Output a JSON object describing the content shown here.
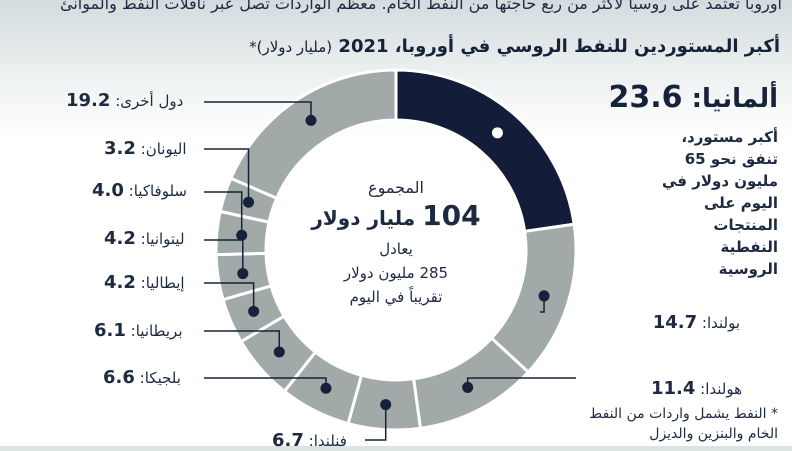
{
  "intro_text": "أوروبا تعتمد على روسيا لأكثر من ربع حاجتها من النفط الخام. معظم الواردات تصل عبر ناقلات النفط والموانئ",
  "title": {
    "main": "أكبر المستوردين للنفط الروسي في أوروبا، 2021",
    "unit": "(مليار دولار)*"
  },
  "center": {
    "line1": "المجموع",
    "total": "104",
    "unit": "مليار دولار",
    "line3": "يعادل",
    "line4": "285 مليون دولار",
    "line5": "تقريباً في اليوم"
  },
  "germany_note": "أكبر مستورد، تنفق نحو 65 مليون دولار في اليوم على المنتجات النفطية الروسية",
  "footnote": "* النفط يشمل واردات من النفط الخام والبنزين والديزل",
  "colors": {
    "highlight": "#131c38",
    "other": "#a2aaa9",
    "separator": "#ffffff",
    "text": "#1d2a40"
  },
  "chart_data": {
    "type": "pie",
    "title": "أكبر المستوردين للنفط الروسي في أوروبا، 2021",
    "unit": "مليار دولار",
    "total": 104,
    "slices": [
      {
        "name": "ألمانيا",
        "value": 23.6,
        "value_text": "23.6",
        "highlight": true
      },
      {
        "name": "بولندا",
        "value": 14.7,
        "value_text": "14.7",
        "highlight": false
      },
      {
        "name": "هولندا",
        "value": 11.4,
        "value_text": "11.4",
        "highlight": false
      },
      {
        "name": "فنلندا",
        "value": 6.7,
        "value_text": "6.7",
        "highlight": false
      },
      {
        "name": "بلجيكا",
        "value": 6.6,
        "value_text": "6.6",
        "highlight": false
      },
      {
        "name": "بريطانيا",
        "value": 6.1,
        "value_text": "6.1",
        "highlight": false
      },
      {
        "name": "إيطاليا",
        "value": 4.2,
        "value_text": "4.2",
        "highlight": false
      },
      {
        "name": "ليتوانيا",
        "value": 4.2,
        "value_text": "4.2",
        "highlight": false
      },
      {
        "name": "سلوفاكيا",
        "value": 4.0,
        "value_text": "4.0",
        "highlight": false
      },
      {
        "name": "اليونان",
        "value": 3.2,
        "value_text": "3.2",
        "highlight": false
      },
      {
        "name": "دول أخرى",
        "value": 19.2,
        "value_text": "19.2",
        "highlight": false
      }
    ]
  }
}
